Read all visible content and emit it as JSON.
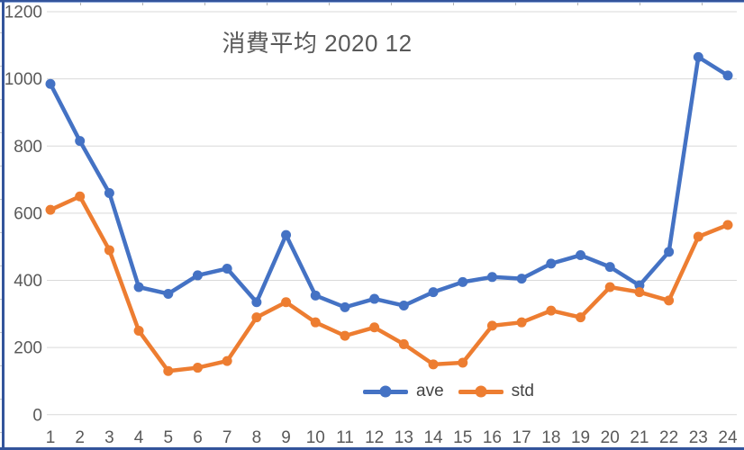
{
  "window": {
    "border_color": "#33549B",
    "border_highlight": "#8EA9DB",
    "sheet_gridline_color": "#C9C9C9"
  },
  "chart_data": {
    "type": "line",
    "title": "消費平均 2020 12",
    "x": [
      1,
      2,
      3,
      4,
      5,
      6,
      7,
      8,
      9,
      10,
      11,
      12,
      13,
      14,
      15,
      16,
      17,
      18,
      19,
      20,
      21,
      22,
      23,
      24
    ],
    "series": [
      {
        "name": "ave",
        "color": "#4472C4",
        "values": [
          985,
          815,
          660,
          380,
          360,
          415,
          435,
          335,
          535,
          355,
          320,
          345,
          325,
          365,
          395,
          410,
          405,
          450,
          475,
          440,
          385,
          485,
          1065,
          1010
        ]
      },
      {
        "name": "std",
        "color": "#ED7D31",
        "values": [
          610,
          650,
          490,
          250,
          130,
          140,
          160,
          290,
          335,
          275,
          235,
          260,
          210,
          150,
          155,
          265,
          275,
          310,
          290,
          380,
          365,
          340,
          530,
          565
        ]
      }
    ],
    "xlabel": "",
    "ylabel": "",
    "ylim": [
      0,
      1200
    ],
    "yticks": [
      0,
      200,
      400,
      600,
      800,
      1000,
      1200
    ],
    "grid": true,
    "gridline_color": "#D9D9D9",
    "tick_label_color": "#595959",
    "title_color": "#595959",
    "legend_position": "bottom-center-inside"
  }
}
